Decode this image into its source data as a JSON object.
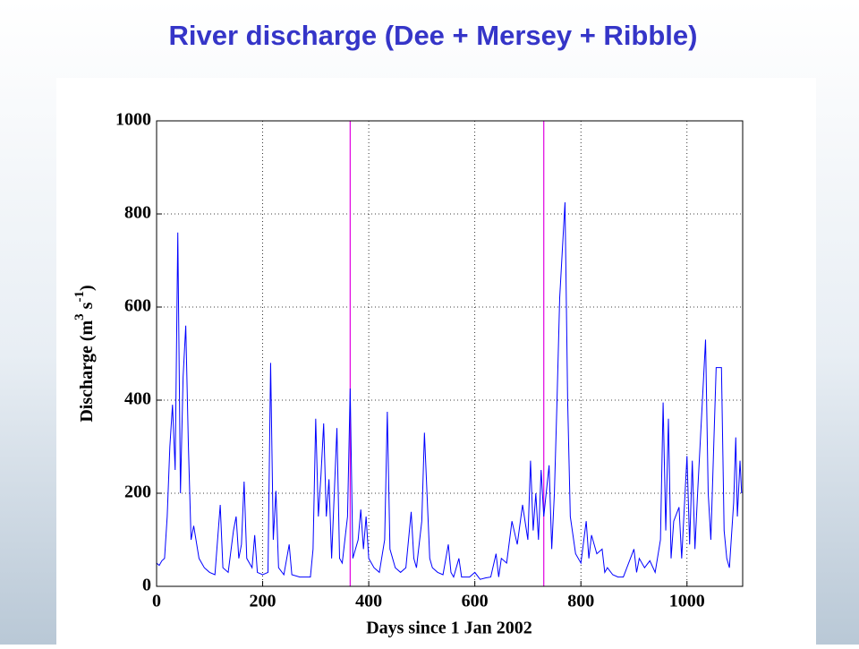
{
  "chart_data": {
    "type": "line",
    "title": "River discharge (Dee + Mersey + Ribble)",
    "xlabel": "Days since 1 Jan 2002",
    "ylabel_parts": [
      {
        "text": "Discharge (m"
      },
      {
        "text": "3",
        "sup": true
      },
      {
        "text": " s"
      },
      {
        "text": "-1",
        "sup": true
      },
      {
        "text": ")"
      }
    ],
    "xlim": [
      0,
      1105
    ],
    "ylim": [
      0,
      1000
    ],
    "xticks": [
      0,
      200,
      400,
      600,
      800,
      1000
    ],
    "yticks": [
      0,
      200,
      400,
      600,
      800,
      1000
    ],
    "grid": true,
    "vlines": [
      365,
      730
    ],
    "vline_color": "#e000e0",
    "series": [
      {
        "color": "#0000ff",
        "x": [
          0,
          5,
          10,
          15,
          20,
          25,
          30,
          35,
          40,
          45,
          50,
          55,
          60,
          65,
          70,
          80,
          90,
          100,
          110,
          120,
          125,
          135,
          145,
          150,
          155,
          160,
          165,
          170,
          180,
          185,
          190,
          200,
          210,
          215,
          220,
          225,
          230,
          240,
          250,
          255,
          270,
          290,
          295,
          300,
          305,
          310,
          315,
          320,
          325,
          330,
          340,
          345,
          350,
          360,
          365,
          370,
          380,
          385,
          390,
          395,
          400,
          410,
          420,
          430,
          435,
          440,
          450,
          460,
          470,
          480,
          485,
          490,
          500,
          505,
          515,
          520,
          530,
          540,
          550,
          555,
          560,
          570,
          575,
          590,
          600,
          610,
          620,
          630,
          640,
          645,
          650,
          660,
          670,
          680,
          690,
          700,
          705,
          710,
          715,
          720,
          725,
          730,
          740,
          745,
          750,
          755,
          760,
          770,
          775,
          780,
          790,
          800,
          810,
          815,
          820,
          830,
          840,
          845,
          850,
          860,
          870,
          880,
          900,
          905,
          910,
          920,
          930,
          940,
          950,
          955,
          960,
          965,
          970,
          975,
          985,
          990,
          1000,
          1005,
          1010,
          1015,
          1020,
          1035,
          1040,
          1045,
          1055,
          1065,
          1070,
          1075,
          1080,
          1088,
          1092,
          1095,
          1100,
          1103
        ],
        "values": [
          50,
          45,
          55,
          60,
          150,
          300,
          390,
          250,
          760,
          200,
          450,
          560,
          300,
          100,
          130,
          60,
          40,
          30,
          25,
          175,
          40,
          30,
          120,
          150,
          60,
          90,
          225,
          60,
          40,
          110,
          30,
          25,
          30,
          480,
          100,
          205,
          40,
          25,
          90,
          25,
          20,
          20,
          80,
          360,
          150,
          240,
          350,
          150,
          230,
          60,
          340,
          60,
          50,
          150,
          425,
          60,
          100,
          165,
          80,
          150,
          60,
          40,
          30,
          100,
          375,
          80,
          40,
          30,
          40,
          160,
          60,
          40,
          140,
          330,
          60,
          40,
          30,
          25,
          90,
          30,
          20,
          60,
          20,
          20,
          30,
          15,
          18,
          20,
          70,
          20,
          60,
          50,
          140,
          90,
          175,
          100,
          270,
          120,
          200,
          100,
          250,
          150,
          260,
          80,
          200,
          400,
          620,
          825,
          400,
          150,
          70,
          50,
          140,
          60,
          110,
          70,
          80,
          30,
          40,
          25,
          20,
          20,
          80,
          30,
          60,
          40,
          55,
          30,
          100,
          395,
          120,
          360,
          60,
          140,
          170,
          60,
          280,
          90,
          270,
          80,
          200,
          530,
          200,
          100,
          470,
          470,
          120,
          60,
          40,
          180,
          320,
          150,
          270,
          200
        ]
      }
    ]
  }
}
